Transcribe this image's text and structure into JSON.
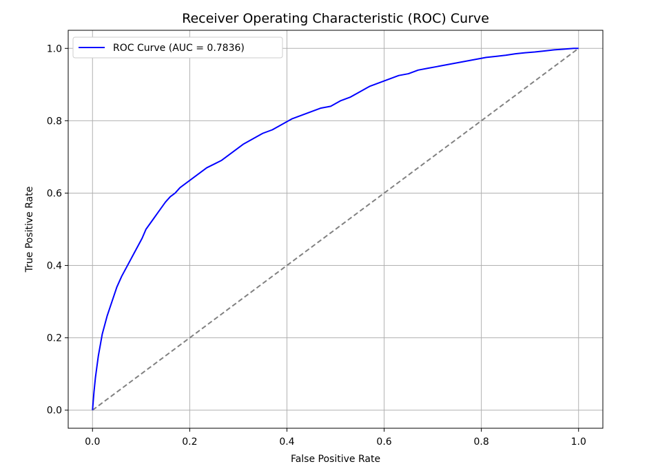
{
  "chart_data": {
    "type": "line",
    "title": "Receiver Operating Characteristic (ROC) Curve",
    "xlabel": "False Positive Rate",
    "ylabel": "True Positive Rate",
    "xlim": [
      -0.05,
      1.05
    ],
    "ylim": [
      -0.05,
      1.05
    ],
    "x_ticks": [
      0.0,
      0.2,
      0.4,
      0.6,
      0.8,
      1.0
    ],
    "y_ticks": [
      0.0,
      0.2,
      0.4,
      0.6,
      0.8,
      1.0
    ],
    "x_tick_labels": [
      "0.0",
      "0.2",
      "0.4",
      "0.6",
      "0.8",
      "1.0"
    ],
    "y_tick_labels": [
      "0.0",
      "0.2",
      "0.4",
      "0.6",
      "0.8",
      "1.0"
    ],
    "grid": true,
    "legend_position": "upper-left",
    "series": [
      {
        "name": "ROC Curve (AUC = 0.7836)",
        "color": "#0000ff",
        "style": "solid",
        "x": [
          0.0,
          0.003,
          0.006,
          0.009,
          0.012,
          0.016,
          0.02,
          0.025,
          0.03,
          0.035,
          0.04,
          0.045,
          0.05,
          0.055,
          0.06,
          0.066,
          0.072,
          0.078,
          0.084,
          0.09,
          0.096,
          0.102,
          0.11,
          0.118,
          0.126,
          0.134,
          0.142,
          0.15,
          0.16,
          0.17,
          0.18,
          0.19,
          0.2,
          0.21,
          0.22,
          0.235,
          0.25,
          0.265,
          0.28,
          0.295,
          0.31,
          0.33,
          0.35,
          0.37,
          0.39,
          0.41,
          0.43,
          0.45,
          0.47,
          0.49,
          0.51,
          0.53,
          0.55,
          0.57,
          0.59,
          0.61,
          0.63,
          0.65,
          0.67,
          0.69,
          0.71,
          0.73,
          0.75,
          0.77,
          0.79,
          0.81,
          0.83,
          0.85,
          0.87,
          0.89,
          0.91,
          0.93,
          0.95,
          0.97,
          0.99,
          1.0
        ],
        "y": [
          0.0,
          0.05,
          0.09,
          0.12,
          0.15,
          0.18,
          0.21,
          0.235,
          0.26,
          0.28,
          0.3,
          0.32,
          0.34,
          0.355,
          0.37,
          0.385,
          0.4,
          0.415,
          0.43,
          0.445,
          0.46,
          0.475,
          0.5,
          0.515,
          0.53,
          0.545,
          0.56,
          0.575,
          0.59,
          0.6,
          0.615,
          0.625,
          0.635,
          0.645,
          0.655,
          0.67,
          0.68,
          0.69,
          0.705,
          0.72,
          0.735,
          0.75,
          0.765,
          0.775,
          0.79,
          0.805,
          0.815,
          0.825,
          0.835,
          0.84,
          0.855,
          0.865,
          0.88,
          0.895,
          0.905,
          0.915,
          0.925,
          0.93,
          0.94,
          0.945,
          0.95,
          0.955,
          0.96,
          0.965,
          0.97,
          0.975,
          0.978,
          0.981,
          0.985,
          0.988,
          0.99,
          0.993,
          0.996,
          0.998,
          1.0,
          1.0
        ]
      },
      {
        "name": "",
        "color": "#808080",
        "style": "dashed",
        "x": [
          0.0,
          1.0
        ],
        "y": [
          0.0,
          1.0
        ]
      }
    ]
  }
}
